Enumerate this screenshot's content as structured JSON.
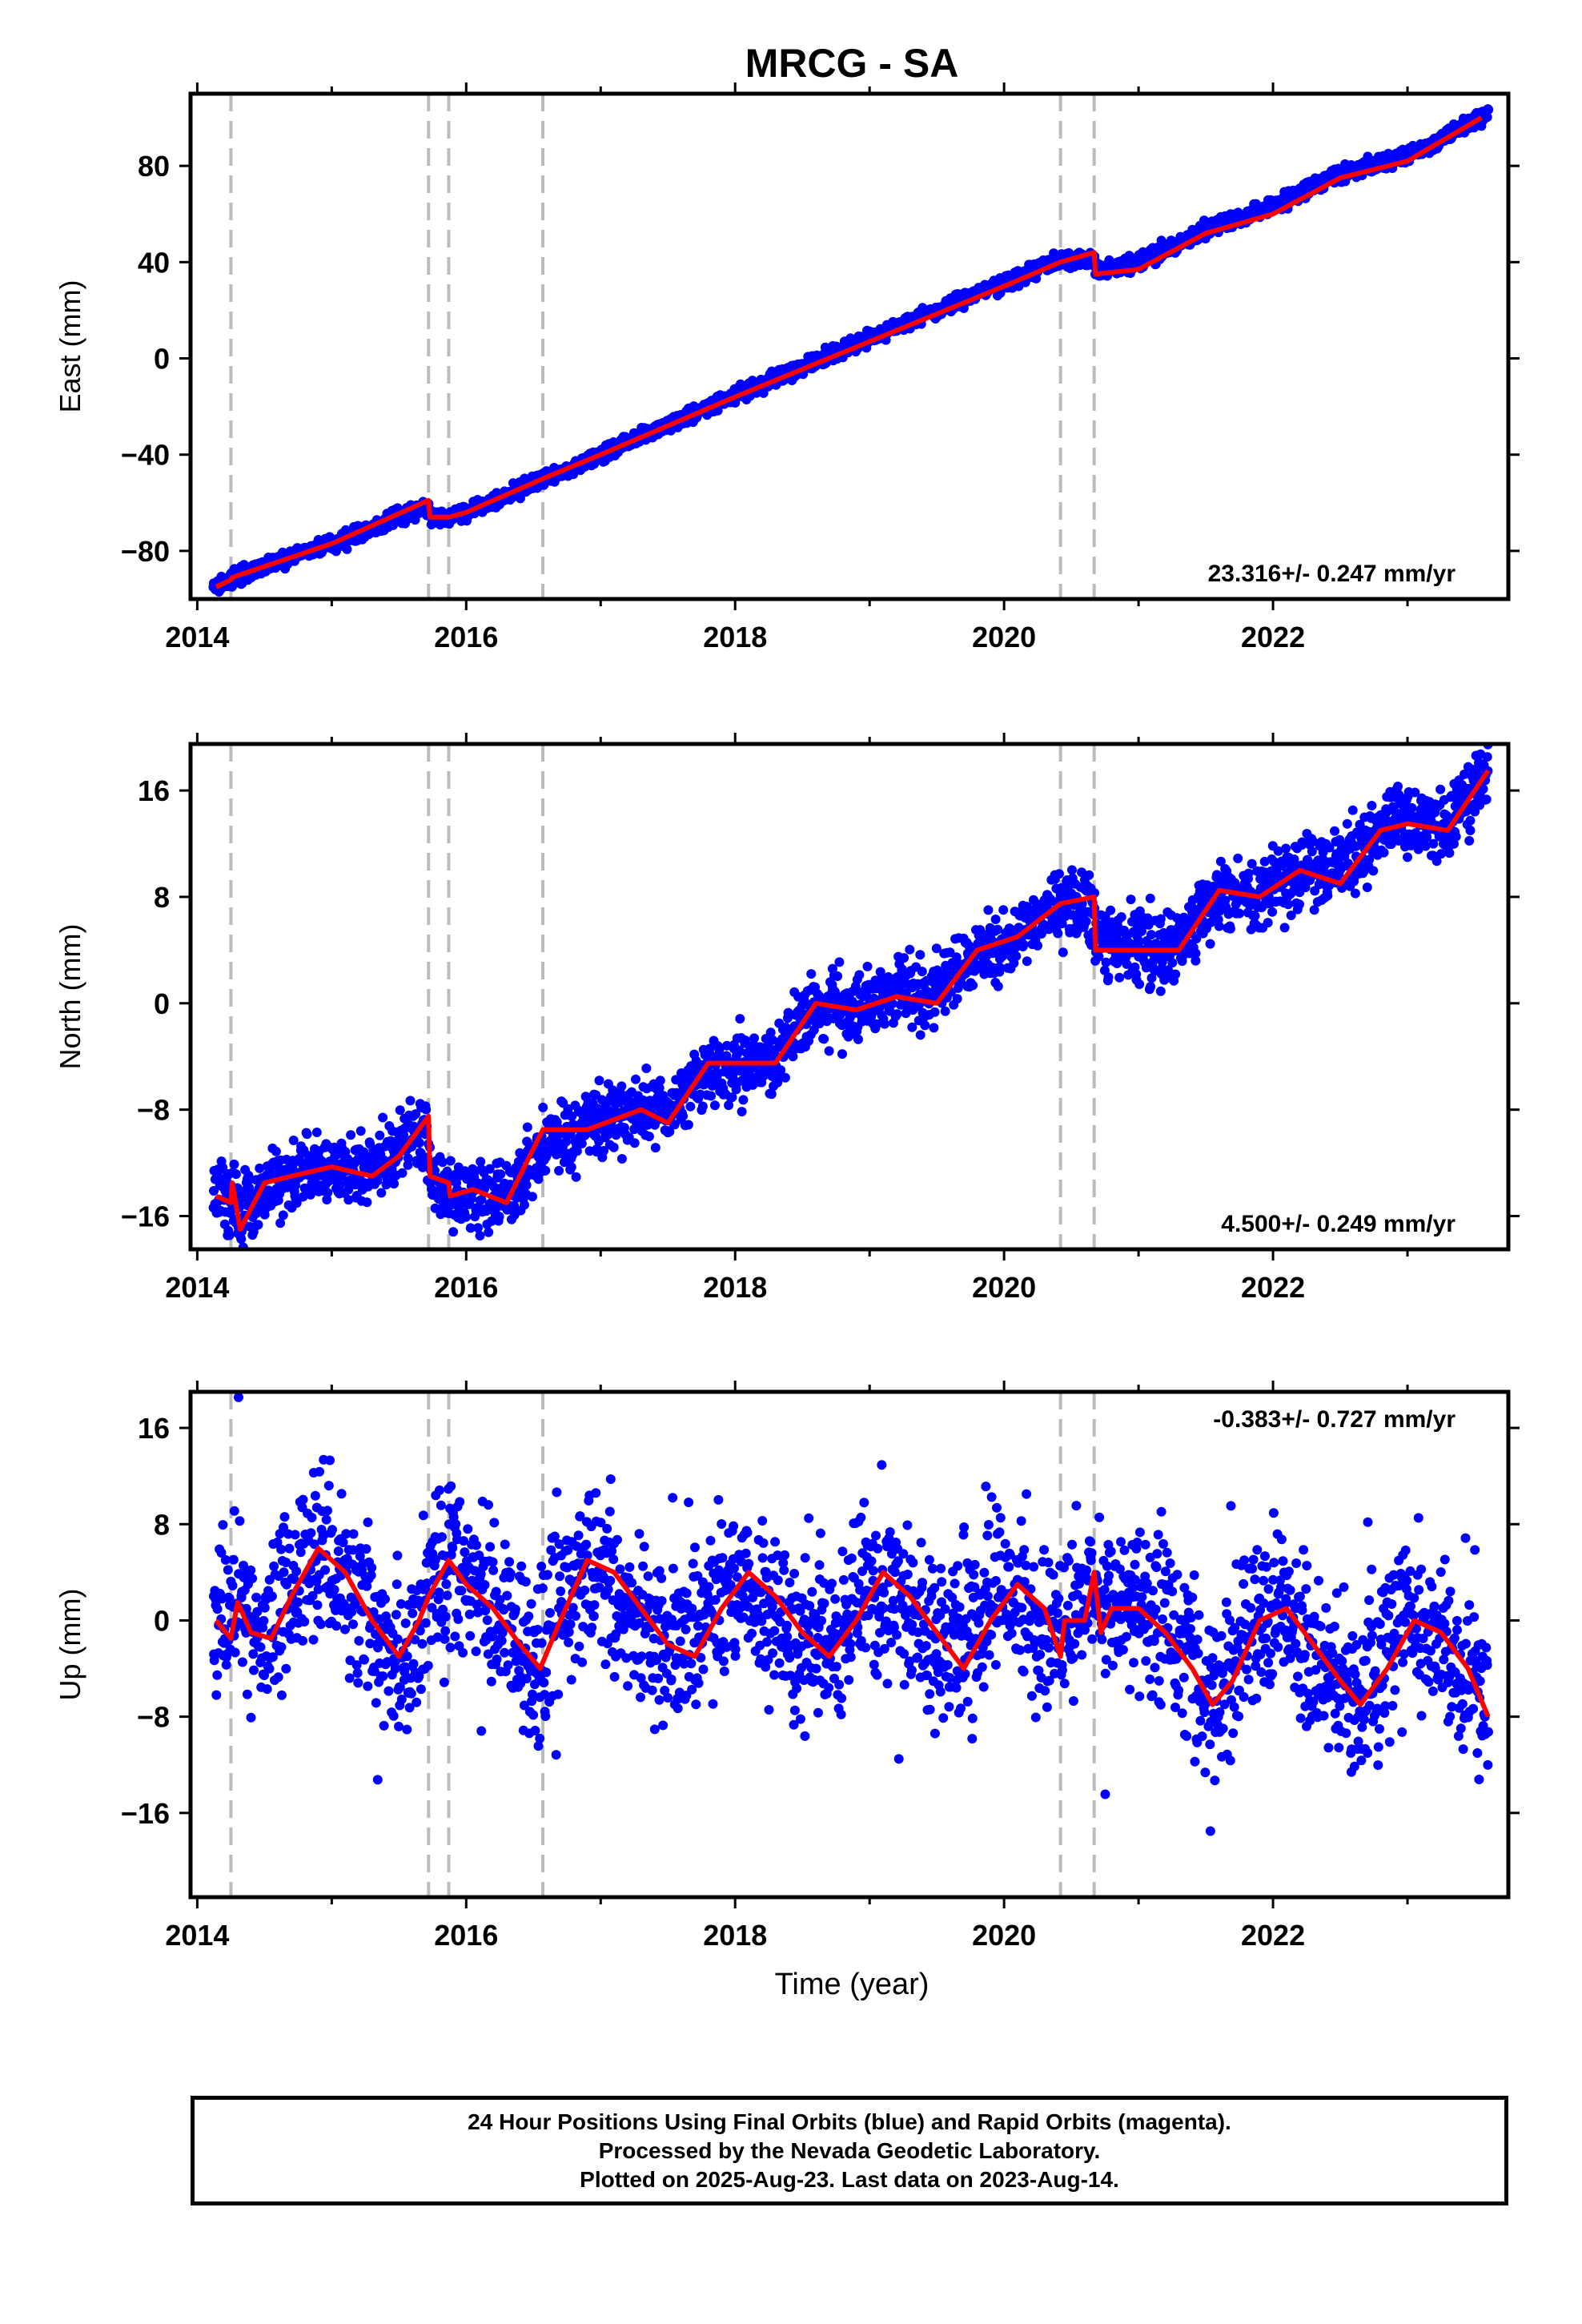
{
  "title": "MRCG - SA",
  "xlabel": "Time (year)",
  "footer": {
    "line1": "24 Hour Positions Using Final Orbits (blue) and Rapid Orbits (magenta).",
    "line2": "Processed by the Nevada Geodetic Laboratory.",
    "line3": "Plotted on 2025-Aug-23. Last data on 2023-Aug-14."
  },
  "colors": {
    "points": "#0000ff",
    "model": "#ff0000",
    "breaks": "#bbbbbb",
    "frame": "#000000"
  },
  "chart_data": [
    {
      "type": "scatter",
      "panel": "east",
      "title": "MRCG - SA",
      "xlabel": "",
      "ylabel": "East (mm)",
      "xlim": [
        2013.95,
        2023.75
      ],
      "ylim": [
        -100,
        110
      ],
      "xticks": [
        2014,
        2016,
        2018,
        2020,
        2022
      ],
      "yticks": [
        -80,
        -40,
        0,
        40,
        80
      ],
      "rate_label": "23.316+/- 0.247 mm/yr",
      "rate_label_position": "bottom-right",
      "break_epochs": [
        2014.25,
        2015.72,
        2015.87,
        2016.57,
        2020.42,
        2020.67
      ],
      "series": [
        {
          "kind": "points",
          "x": [
            2014.12,
            2014.5,
            2014.9,
            2015.3,
            2015.7,
            2015.8,
            2016.0,
            2016.5,
            2017.0,
            2017.5,
            2018.0,
            2018.5,
            2019.0,
            2019.5,
            2020.0,
            2020.4,
            2020.7,
            2021.0,
            2021.5,
            2022.0,
            2022.5,
            2023.0,
            2023.6
          ],
          "y": [
            -94,
            -86,
            -79,
            -72,
            -63,
            -68,
            -64,
            -52,
            -40,
            -27,
            -15,
            -3,
            10,
            22,
            33,
            42,
            38,
            43,
            55,
            67,
            79,
            86,
            102
          ]
        },
        {
          "kind": "line",
          "x": [
            2014.14,
            2014.25,
            2014.26,
            2015.0,
            2015.72,
            2015.73,
            2015.87,
            2016.0,
            2016.57,
            2017.0,
            2018.0,
            2019.0,
            2020.0,
            2020.42,
            2020.67,
            2020.68,
            2021.0,
            2021.5,
            2022.0,
            2022.5,
            2023.0,
            2023.55
          ],
          "y": [
            -95,
            -92,
            -91,
            -77,
            -59,
            -66,
            -66,
            -64,
            -50,
            -40,
            -16,
            7,
            30,
            40,
            44,
            35,
            37,
            52,
            60,
            75,
            82,
            100
          ]
        }
      ]
    },
    {
      "type": "scatter",
      "panel": "north",
      "xlabel": "",
      "ylabel": "North (mm)",
      "xlim": [
        2013.95,
        2023.75
      ],
      "ylim": [
        -18.5,
        19.5
      ],
      "xticks": [
        2014,
        2016,
        2018,
        2020,
        2022
      ],
      "yticks": [
        -16,
        -8,
        0,
        8,
        16
      ],
      "rate_label": "4.500+/- 0.249 mm/yr",
      "rate_label_position": "bottom-right",
      "break_epochs": [
        2014.25,
        2015.72,
        2015.87,
        2016.57,
        2020.42,
        2020.67
      ],
      "series": [
        {
          "kind": "points",
          "x": [
            2014.12,
            2014.4,
            2014.8,
            2015.2,
            2015.6,
            2015.8,
            2016.1,
            2016.5,
            2016.9,
            2017.3,
            2017.7,
            2018.1,
            2018.5,
            2018.9,
            2019.3,
            2019.7,
            2020.1,
            2020.5,
            2020.8,
            2021.2,
            2021.6,
            2022.0,
            2022.4,
            2022.8,
            2023.2,
            2023.6
          ],
          "y": [
            -14,
            -15,
            -12,
            -13,
            -9,
            -14,
            -15,
            -13,
            -9,
            -8,
            -6,
            -5,
            -1,
            0,
            1,
            3,
            5,
            7,
            5,
            4,
            8,
            9,
            10,
            14,
            13,
            17
          ]
        },
        {
          "kind": "line",
          "x": [
            2014.14,
            2014.25,
            2014.26,
            2014.32,
            2014.5,
            2014.7,
            2015.0,
            2015.3,
            2015.5,
            2015.72,
            2015.73,
            2015.87,
            2015.88,
            2016.05,
            2016.3,
            2016.57,
            2016.9,
            2017.3,
            2017.5,
            2017.8,
            2018.0,
            2018.3,
            2018.6,
            2018.9,
            2019.2,
            2019.5,
            2019.8,
            2020.1,
            2020.42,
            2020.67,
            2020.68,
            2021.0,
            2021.3,
            2021.6,
            2021.9,
            2022.2,
            2022.5,
            2022.8,
            2023.0,
            2023.3,
            2023.6
          ],
          "y": [
            -14.5,
            -15,
            -13.5,
            -17,
            -13.5,
            -13,
            -12.3,
            -13,
            -11.5,
            -8.5,
            -13,
            -13.5,
            -14.5,
            -14,
            -15,
            -9.5,
            -9.5,
            -8,
            -9,
            -4.5,
            -4.5,
            -4.5,
            0,
            -0.5,
            0.5,
            0,
            4,
            5,
            7.5,
            8,
            4,
            4,
            4,
            8.5,
            8,
            10,
            9,
            13,
            13.5,
            13,
            17.5
          ]
        }
      ]
    },
    {
      "type": "scatter",
      "panel": "up",
      "xlabel": "Time (year)",
      "ylabel": "Up (mm)",
      "xlim": [
        2013.95,
        2023.75
      ],
      "ylim": [
        -23,
        19
      ],
      "xticks": [
        2014,
        2016,
        2018,
        2020,
        2022
      ],
      "yticks": [
        -16,
        -8,
        0,
        8,
        16
      ],
      "rate_label": "-0.383+/- 0.727 mm/yr",
      "rate_label_position": "top-right",
      "break_epochs": [
        2014.25,
        2015.72,
        2015.87,
        2016.57,
        2020.42,
        2020.67
      ],
      "series": [
        {
          "kind": "points",
          "x": [
            2014.12,
            2014.3,
            2014.5,
            2014.7,
            2014.9,
            2015.1,
            2015.3,
            2015.5,
            2015.7,
            2015.9,
            2016.1,
            2016.3,
            2016.5,
            2016.7,
            2016.9,
            2017.1,
            2017.3,
            2017.5,
            2017.7,
            2017.9,
            2018.1,
            2018.3,
            2018.5,
            2018.7,
            2018.9,
            2019.1,
            2019.3,
            2019.5,
            2019.7,
            2019.9,
            2020.1,
            2020.3,
            2020.6,
            2020.8,
            2021.0,
            2021.2,
            2021.4,
            2021.6,
            2021.8,
            2022.0,
            2022.2,
            2022.4,
            2022.6,
            2022.8,
            2023.0,
            2023.2,
            2023.4,
            2023.6
          ],
          "y": [
            0,
            3,
            -2,
            3,
            6,
            4,
            -1,
            -3,
            2,
            5,
            2,
            -1,
            -4,
            2,
            5,
            2,
            -2,
            -3,
            2,
            4,
            2,
            -2,
            -3,
            2,
            4,
            2,
            -2,
            -4,
            2,
            4,
            1,
            -3,
            4,
            1,
            2,
            2,
            -4,
            -6,
            0,
            1,
            -2,
            -6,
            -6,
            0,
            1,
            -2,
            -5,
            -7
          ]
        },
        {
          "kind": "line",
          "x": [
            2014.14,
            2014.25,
            2014.3,
            2014.4,
            2014.55,
            2014.7,
            2014.9,
            2015.1,
            2015.3,
            2015.5,
            2015.65,
            2015.72,
            2015.87,
            2016.0,
            2016.2,
            2016.4,
            2016.55,
            2016.7,
            2016.9,
            2017.1,
            2017.3,
            2017.5,
            2017.7,
            2017.9,
            2018.1,
            2018.3,
            2018.5,
            2018.7,
            2018.9,
            2019.1,
            2019.3,
            2019.5,
            2019.7,
            2019.9,
            2020.1,
            2020.3,
            2020.42,
            2020.45,
            2020.6,
            2020.67,
            2020.72,
            2020.8,
            2021.0,
            2021.2,
            2021.4,
            2021.55,
            2021.7,
            2021.9,
            2022.1,
            2022.3,
            2022.5,
            2022.65,
            2022.85,
            2023.05,
            2023.25,
            2023.45,
            2023.6
          ],
          "y": [
            0,
            -1.5,
            1.5,
            -1,
            -1.5,
            2,
            6,
            4,
            0,
            -3,
            0,
            2,
            5,
            3,
            1,
            -2,
            -4,
            0,
            5,
            4,
            1,
            -2,
            -3,
            1,
            4,
            2,
            -1,
            -3,
            0,
            4,
            2,
            -1,
            -4,
            0,
            3,
            1,
            -3,
            0,
            0,
            4,
            -1,
            1,
            1,
            -1,
            -4,
            -7,
            -5,
            0,
            1,
            -2,
            -5,
            -7,
            -4,
            0,
            -1,
            -4,
            -8
          ]
        }
      ]
    }
  ]
}
